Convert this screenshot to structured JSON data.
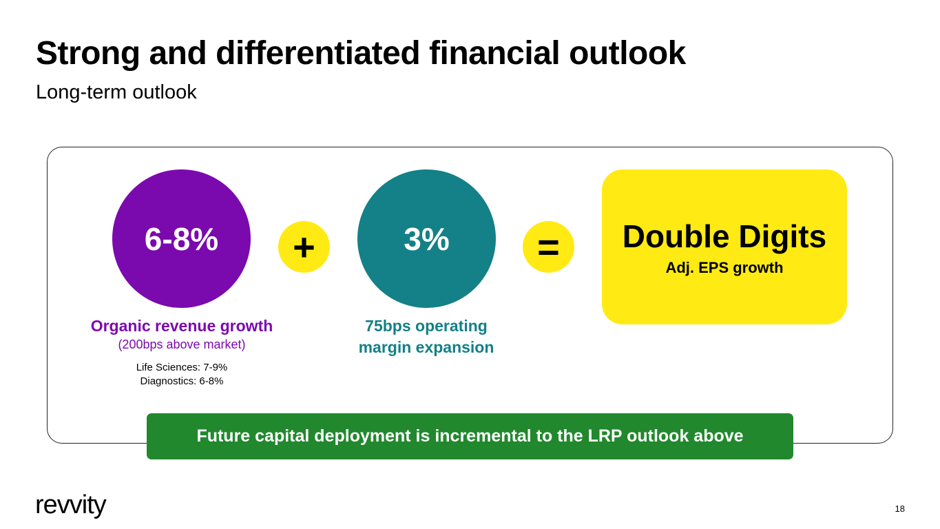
{
  "slide": {
    "title": "Strong and differentiated financial outlook",
    "subtitle": "Long-term outlook",
    "page_number": "18"
  },
  "organic": {
    "value": "6-8%",
    "label": "Organic revenue growth",
    "sublabel": "(200bps above market)",
    "detail_1": "Life Sciences: 7-9%",
    "detail_2": "Diagnostics: 6-8%"
  },
  "operators": {
    "plus": "+",
    "equals": "="
  },
  "margin": {
    "value": "3%",
    "label_line1": "75bps operating",
    "label_line2": "margin expansion"
  },
  "eps": {
    "headline": "Double Digits",
    "label": "Adj. EPS growth"
  },
  "banner": {
    "text": "Future capital deployment is incremental to the LRP outlook above"
  },
  "brand": {
    "logo_text": "revvity"
  },
  "colors": {
    "purple": "#7b0aae",
    "teal": "#148087",
    "yellow": "#ffea14",
    "green": "#21882d"
  }
}
